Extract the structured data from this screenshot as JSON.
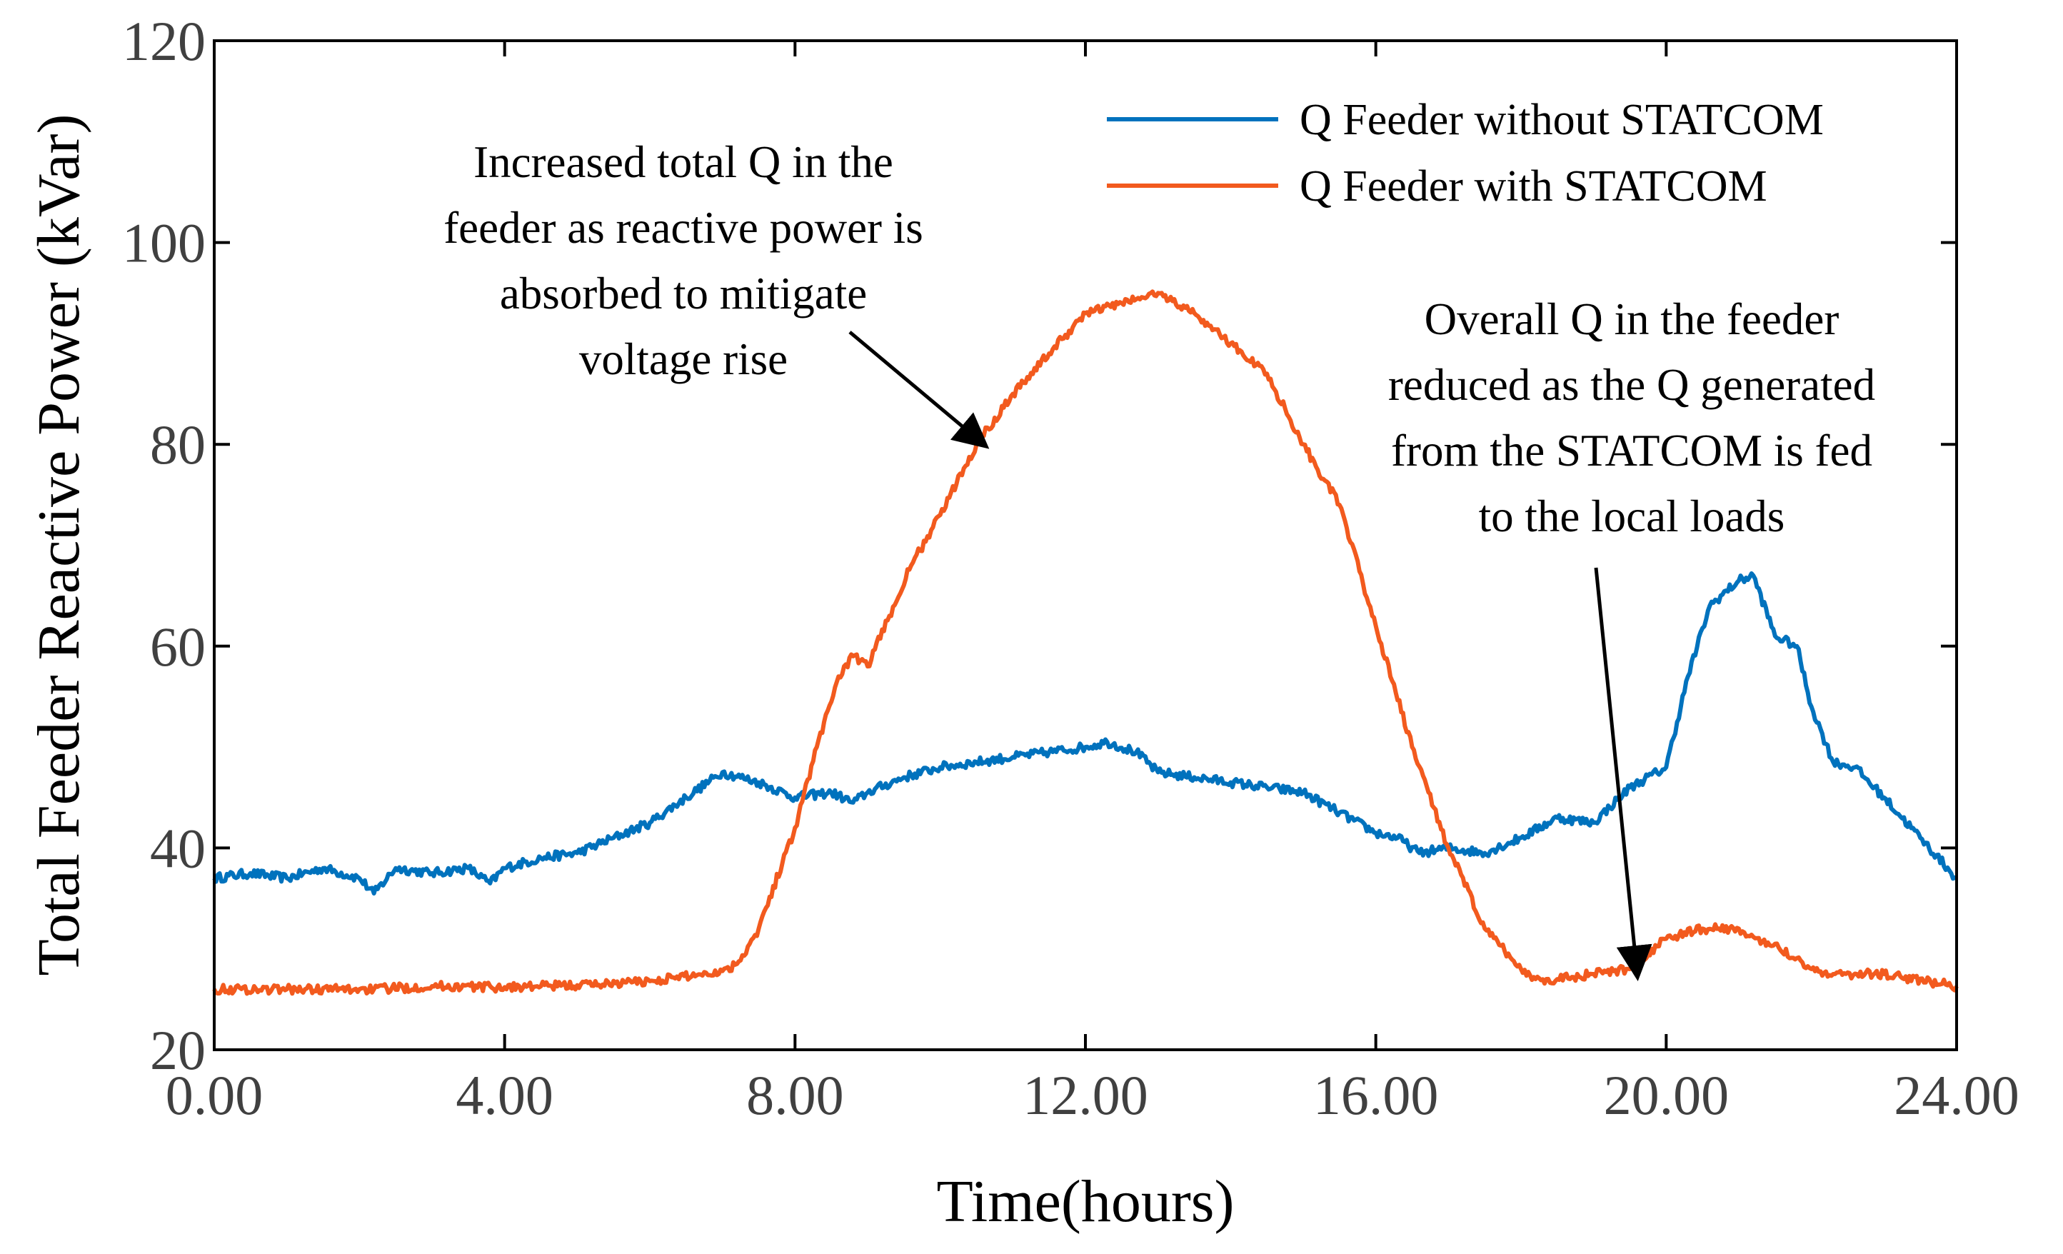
{
  "chart_data": {
    "type": "line",
    "xlabel": "Time(hours)",
    "ylabel": "Total Feeder Reactive Power (kVar)",
    "xlim": [
      0,
      24
    ],
    "ylim": [
      20,
      120
    ],
    "xticks": [
      0,
      4,
      8,
      12,
      16,
      20,
      24
    ],
    "xtick_labels": [
      "0.00",
      "4.00",
      "8.00",
      "12.00",
      "16.00",
      "20.00",
      "24.00"
    ],
    "yticks": [
      20,
      40,
      60,
      80,
      100,
      120
    ],
    "ytick_labels": [
      "20",
      "40",
      "60",
      "80",
      "100",
      "120"
    ],
    "grid": false,
    "legend_position": "top-right",
    "series": [
      {
        "name": "Q Feeder without STATCOM",
        "color": "#0072BD",
        "x": [
          0,
          0.5,
          1,
          1.5,
          2,
          2.2,
          2.5,
          3,
          3.5,
          3.8,
          4,
          4.5,
          5,
          5.5,
          6,
          6.5,
          7,
          7.5,
          8,
          8.5,
          8.8,
          9,
          9.5,
          10,
          10.5,
          11,
          11.5,
          12,
          12.3,
          12.7,
          13,
          13.5,
          14,
          14.5,
          15,
          15.5,
          16,
          16.3,
          16.6,
          17,
          17.5,
          18,
          18.5,
          19,
          19.5,
          20,
          20.3,
          20.6,
          21,
          21.2,
          21.5,
          21.8,
          22,
          22.3,
          22.6,
          23,
          23.5,
          24
        ],
        "values": [
          37,
          37.5,
          37,
          38,
          37,
          35.5,
          38,
          37.5,
          38,
          36.5,
          38,
          39,
          39.5,
          41,
          42.5,
          45,
          47.5,
          46.5,
          45,
          45.5,
          44.5,
          45.5,
          47,
          48,
          48.5,
          49,
          49.5,
          50,
          50.5,
          49.5,
          47.5,
          47,
          46.5,
          46,
          45.5,
          43.5,
          41.5,
          41,
          39.5,
          40,
          39.5,
          41,
          43,
          42.5,
          46,
          48,
          57,
          64,
          66.5,
          67,
          61,
          60,
          54,
          48.5,
          48,
          45,
          41,
          37
        ]
      },
      {
        "name": "Q Feeder with STATCOM",
        "color": "#F25A1E",
        "x": [
          0,
          1,
          2,
          2.2,
          3,
          4,
          5,
          6,
          7,
          7.2,
          7.5,
          8,
          8.3,
          8.6,
          8.8,
          9,
          9.3,
          9.6,
          10,
          10.5,
          11,
          11.5,
          12,
          12.5,
          13,
          13.5,
          14,
          14.5,
          15,
          15.5,
          16,
          16.5,
          17,
          17.5,
          18,
          18.2,
          18.5,
          19,
          19.5,
          20,
          20.5,
          21,
          21.3,
          21.5,
          22,
          22.3,
          23,
          24
        ],
        "values": [
          26,
          26,
          26,
          26,
          26.3,
          26.2,
          26.4,
          26.8,
          27.8,
          28.5,
          32,
          42,
          50,
          57,
          59,
          58,
          63,
          68,
          73,
          80,
          85,
          89,
          93,
          94,
          95,
          93,
          90,
          87,
          80,
          74,
          62,
          50,
          40,
          32,
          28,
          27,
          27,
          27.5,
          28,
          31,
          32,
          32,
          30.5,
          30.5,
          28,
          27.5,
          27.5,
          26.3
        ]
      }
    ],
    "annotations": [
      {
        "lines": [
          "Increased total Q in the",
          "feeder as reactive power is",
          "absorbed to mitigate",
          "voltage rise"
        ],
        "arrow_target": [
          10.6,
          80
        ]
      },
      {
        "lines": [
          "Overall Q in the feeder",
          "reduced as the Q generated",
          "from the STATCOM is fed",
          "to the local loads"
        ],
        "arrow_target": [
          19.6,
          27.5
        ]
      }
    ]
  }
}
